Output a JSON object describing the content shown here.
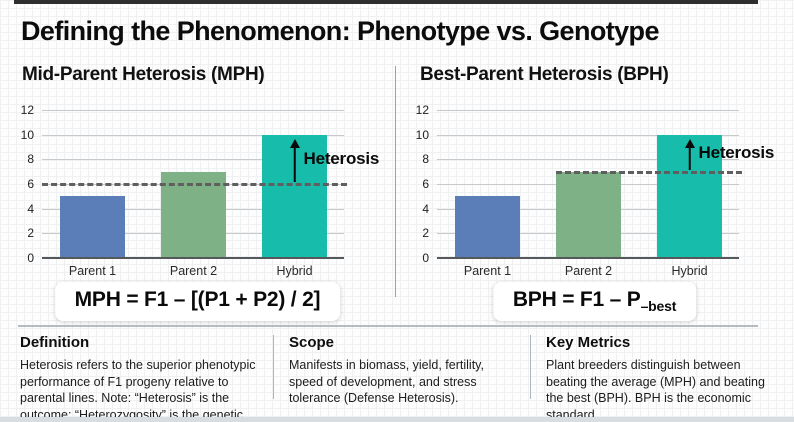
{
  "title": "Defining the Phenomenon: Phenotype vs. Genotype",
  "chart_data": [
    {
      "type": "bar",
      "title": "Mid-Parent Heterosis (MPH)",
      "categories": [
        "Parent 1",
        "Parent 2",
        "Hybrid"
      ],
      "values": [
        5,
        7,
        10
      ],
      "bar_colors": [
        "#5b7db8",
        "#7eb286",
        "#17bcaa"
      ],
      "xlabel": "",
      "ylabel": "",
      "ylim": [
        0,
        12
      ],
      "yticks": [
        0,
        2,
        4,
        6,
        8,
        10,
        12
      ],
      "grid": true,
      "dashed_line": {
        "value": 6,
        "full_width": true
      },
      "annotation": {
        "text": "Heterosis",
        "arrow_from_value": 6,
        "arrow_to_value": 10
      },
      "formula": {
        "main": "MPH = F1 – [(P1 + P2) / 2]",
        "sub": ""
      }
    },
    {
      "type": "bar",
      "title": "Best-Parent Heterosis (BPH)",
      "categories": [
        "Parent 1",
        "Parent 2",
        "Hybrid"
      ],
      "values": [
        5,
        7,
        10
      ],
      "bar_colors": [
        "#5b7db8",
        "#7eb286",
        "#17bcaa"
      ],
      "xlabel": "",
      "ylabel": "",
      "ylim": [
        0,
        12
      ],
      "yticks": [
        0,
        2,
        4,
        6,
        8,
        10,
        12
      ],
      "grid": true,
      "dashed_line": {
        "value": 7,
        "full_width": false
      },
      "annotation": {
        "text": "Heterosis",
        "arrow_from_value": 7,
        "arrow_to_value": 10
      },
      "formula": {
        "main": "BPH = F1 – P",
        "sub": "–best"
      }
    }
  ],
  "footer": {
    "sections": [
      {
        "heading": "Definition",
        "body": "Heterosis refers to the superior phenotypic performance of F1 progeny relative to parental lines. Note: “Heterosis” is the outcome; “Heterozygosity” is the genetic state."
      },
      {
        "heading": "Scope",
        "body": "Manifests in biomass, yield, fertility, speed of development, and stress tolerance (Defense Heterosis)."
      },
      {
        "heading": "Key Metrics",
        "body": "Plant breeders distinguish between beating the average (MPH) and beating the best (BPH). BPH is the economic standard."
      }
    ]
  },
  "colors": {
    "bar_parent1": "#5b7db8",
    "bar_parent2": "#7eb286",
    "bar_hybrid": "#17bcaa",
    "dashed_line": "#5f5f5f",
    "top_accent_bar": "#2e2e2e"
  }
}
